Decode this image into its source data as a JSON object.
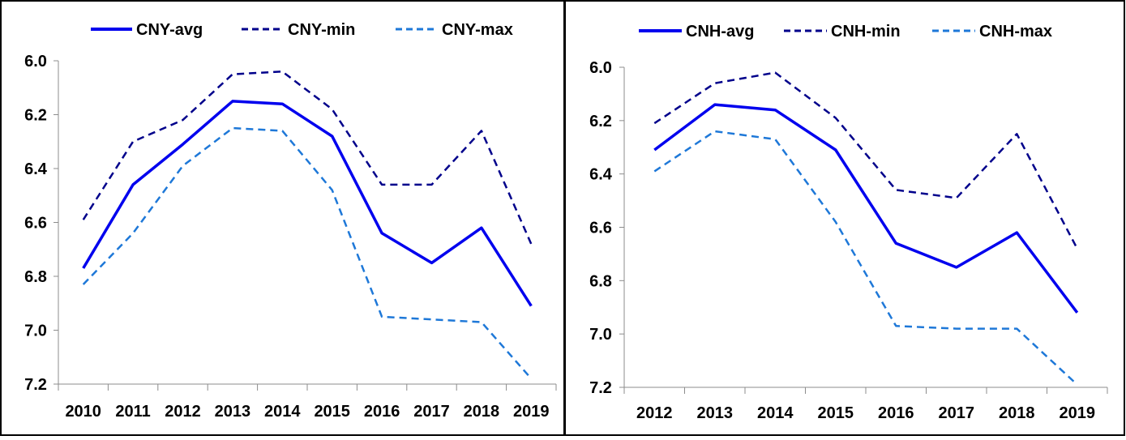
{
  "chart_data": [
    {
      "type": "line",
      "title": "",
      "xlabel": "",
      "ylabel": "",
      "ylim": [
        6.0,
        7.2
      ],
      "y_inverted": true,
      "grid": false,
      "legend_position": "top",
      "y_ticks": [
        "6.0",
        "6.2",
        "6.4",
        "6.6",
        "6.8",
        "7.0",
        "7.2"
      ],
      "categories": [
        "2010",
        "2011",
        "2012",
        "2013",
        "2014",
        "2015",
        "2016",
        "2017",
        "2018",
        "2019"
      ],
      "series": [
        {
          "name": "CNY-avg",
          "style": "solid",
          "color": "#0000ee",
          "values": [
            6.77,
            6.46,
            6.31,
            6.15,
            6.16,
            6.28,
            6.64,
            6.75,
            6.62,
            6.91
          ]
        },
        {
          "name": "CNY-min",
          "style": "dashed",
          "color": "#00008b",
          "values": [
            6.59,
            6.3,
            6.22,
            6.05,
            6.04,
            6.18,
            6.46,
            6.46,
            6.26,
            6.68
          ]
        },
        {
          "name": "CNY-max",
          "style": "dashed",
          "color": "#1e78d8",
          "values": [
            6.83,
            6.64,
            6.39,
            6.25,
            6.26,
            6.48,
            6.95,
            6.96,
            6.97,
            7.18
          ]
        }
      ]
    },
    {
      "type": "line",
      "title": "",
      "xlabel": "",
      "ylabel": "",
      "ylim": [
        6.0,
        7.2
      ],
      "y_inverted": true,
      "grid": false,
      "legend_position": "top",
      "y_ticks": [
        "6.0",
        "6.2",
        "6.4",
        "6.6",
        "6.8",
        "7.0",
        "7.2"
      ],
      "categories": [
        "2012",
        "2013",
        "2014",
        "2015",
        "2016",
        "2017",
        "2018",
        "2019"
      ],
      "series": [
        {
          "name": "CNH-avg",
          "style": "solid",
          "color": "#0000ee",
          "values": [
            6.31,
            6.14,
            6.16,
            6.31,
            6.66,
            6.75,
            6.62,
            6.92
          ]
        },
        {
          "name": "CNH-min",
          "style": "dashed",
          "color": "#00008b",
          "values": [
            6.21,
            6.06,
            6.02,
            6.19,
            6.46,
            6.49,
            6.25,
            6.68
          ]
        },
        {
          "name": "CNH-max",
          "style": "dashed",
          "color": "#1e78d8",
          "values": [
            6.39,
            6.24,
            6.27,
            6.58,
            6.97,
            6.98,
            6.98,
            7.19
          ]
        }
      ]
    }
  ]
}
